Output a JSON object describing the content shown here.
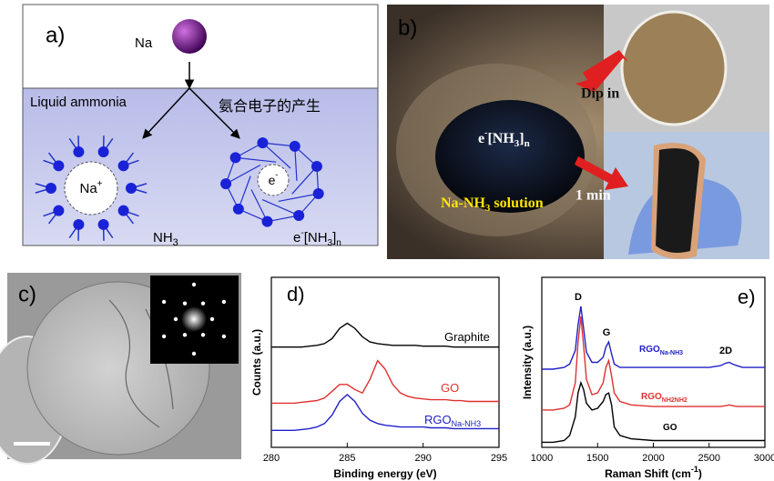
{
  "panel_a": {
    "label": "a)",
    "atom": "Na",
    "solvent": "Liquid ammonia",
    "caption": "氨合电子的产生",
    "ion": [
      "Na",
      "+"
    ],
    "electron": [
      "e",
      "-"
    ],
    "molecule": [
      "NH",
      "3"
    ],
    "solvated_electron": [
      "e",
      "-",
      "[NH",
      "3",
      "]",
      "n"
    ]
  },
  "panel_b": {
    "label": "b)",
    "dip": "Dip in",
    "time": "1 min",
    "species": [
      "e",
      "-",
      "[NH",
      "3",
      "]",
      "n"
    ],
    "solution": [
      "Na-NH",
      "3",
      " solution"
    ]
  },
  "panel_c": {
    "label": "c)"
  },
  "chart_data": [
    {
      "type": "line",
      "label": "d)",
      "x_label": [
        "Binding energy (eV)"
      ],
      "y_label": "Counts (a.u.)",
      "x": [
        280,
        280.5,
        281,
        281.5,
        282,
        282.5,
        283,
        283.5,
        284,
        284.5,
        285,
        285.5,
        286,
        286.5,
        287,
        287.5,
        288,
        288.5,
        289,
        289.5,
        290,
        290.5,
        291,
        291.5,
        292,
        292.5,
        293,
        293.5,
        294,
        294.5,
        295
      ],
      "xlim": [
        280,
        295
      ],
      "xticks": [
        280,
        285,
        290,
        295
      ],
      "ylim": [
        0,
        100
      ],
      "series": [
        {
          "name": "Graphite",
          "color": "#000000",
          "values": [
            59,
            59,
            59,
            59,
            59,
            59.5,
            60,
            61,
            64,
            70,
            73,
            70,
            65,
            62,
            61,
            60.5,
            60,
            60,
            60,
            60,
            59.5,
            59.5,
            59.5,
            59.5,
            59,
            59,
            59,
            59,
            59,
            59,
            59
          ]
        },
        {
          "name": "GO",
          "color": "#e03030",
          "values": [
            26,
            26,
            26,
            26,
            26.5,
            27,
            27.5,
            29,
            33,
            37,
            37,
            34,
            32,
            40,
            51,
            46,
            37,
            32,
            30,
            29,
            28.5,
            28,
            28,
            28,
            27.5,
            27.5,
            27,
            27,
            27,
            27,
            27
          ]
        },
        {
          "name": "RGO",
          "name_sub": "Na-NH3",
          "color": "#2020c8",
          "values": [
            10,
            10,
            10,
            10,
            10.5,
            11,
            12,
            14,
            19,
            27,
            31,
            27,
            20,
            16,
            14,
            13,
            12.5,
            12,
            12,
            12,
            12,
            11.5,
            11.5,
            11.5,
            11,
            11,
            11,
            11,
            11,
            11,
            11
          ]
        }
      ]
    },
    {
      "type": "line",
      "label": "e)",
      "x_label": [
        "Raman Shift (cm",
        "-1",
        ")"
      ],
      "y_label": "Intensity (a.u.)",
      "x": [
        1000,
        1100,
        1200,
        1250,
        1300,
        1325,
        1350,
        1375,
        1400,
        1450,
        1500,
        1550,
        1575,
        1600,
        1625,
        1650,
        1700,
        1800,
        2000,
        2200,
        2400,
        2500,
        2600,
        2650,
        2680,
        2710,
        2750,
        2800,
        3000
      ],
      "xlim": [
        1000,
        3000
      ],
      "xticks": [
        1000,
        1500,
        2000,
        2500,
        3000
      ],
      "ylim": [
        0,
        100
      ],
      "annotations": [
        "D",
        "G",
        "2D"
      ],
      "series": [
        {
          "name": "RGO",
          "name_sub": "Na-NH3",
          "color": "#2020c8",
          "values": [
            46,
            46,
            47,
            49,
            57,
            72,
            83,
            70,
            56,
            50,
            50,
            53,
            59,
            62,
            55,
            49,
            47,
            47,
            47,
            47,
            47,
            47,
            48,
            49.5,
            50,
            49,
            48,
            47,
            47
          ]
        },
        {
          "name": "RGO",
          "name_sub": "NH2NH2",
          "color": "#e03030",
          "values": [
            22,
            22,
            23,
            25,
            38,
            62,
            77,
            60,
            40,
            31,
            32,
            38,
            47,
            51,
            42,
            32,
            27,
            25,
            24,
            24,
            24,
            24,
            24,
            24.5,
            25,
            24.5,
            24,
            24,
            24
          ]
        },
        {
          "name": "GO",
          "color": "#000000",
          "values": [
            3,
            3,
            4,
            7,
            18,
            32,
            38,
            34,
            26,
            22,
            23,
            27,
            31,
            32,
            25,
            12,
            7,
            5,
            4,
            4,
            4,
            4,
            4,
            4,
            4,
            4,
            4,
            4,
            4
          ]
        }
      ]
    }
  ]
}
